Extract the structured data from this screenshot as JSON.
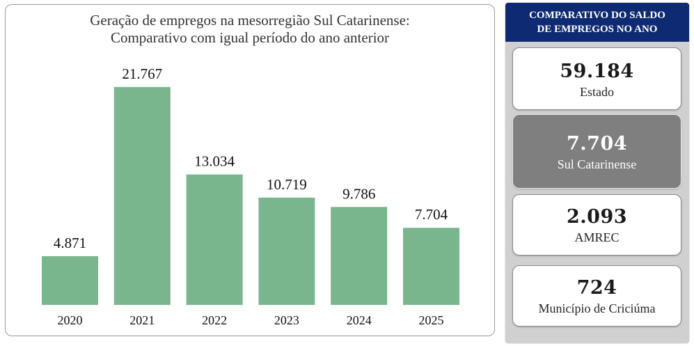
{
  "chart_data": {
    "type": "bar",
    "title": "Geração de empregos na mesorregião Sul Catarinense: Comparativo com igual período do ano anterior",
    "title_lines": [
      "Geração de empregos na mesorregião Sul Catarinense:",
      "Comparativo com igual período do ano anterior"
    ],
    "categories": [
      "2020",
      "2021",
      "2022",
      "2023",
      "2024",
      "2025"
    ],
    "values": [
      4871,
      21767,
      13034,
      10719,
      9786,
      7704
    ],
    "value_labels": [
      "4.871",
      "21.767",
      "13.034",
      "10.719",
      "9.786",
      "7.704"
    ],
    "xlabel": "",
    "ylabel": "",
    "ylim": [
      0,
      21767
    ],
    "grid": false,
    "bar_color": "#7ab68d"
  },
  "panel": {
    "header_lines": [
      "COMPARATIVO DO SALDO",
      "DE EMPREGOS NO ANO"
    ],
    "header_color": "#0e2a72",
    "stats": [
      {
        "value": "59.184",
        "label": "Estado",
        "highlight": false
      },
      {
        "value": "7.704",
        "label": "Sul Catarinense",
        "highlight": true
      },
      {
        "value": "2.093",
        "label": "AMREC",
        "highlight": false
      },
      {
        "value": "724",
        "label": "Município de Criciúma",
        "highlight": false
      }
    ]
  }
}
